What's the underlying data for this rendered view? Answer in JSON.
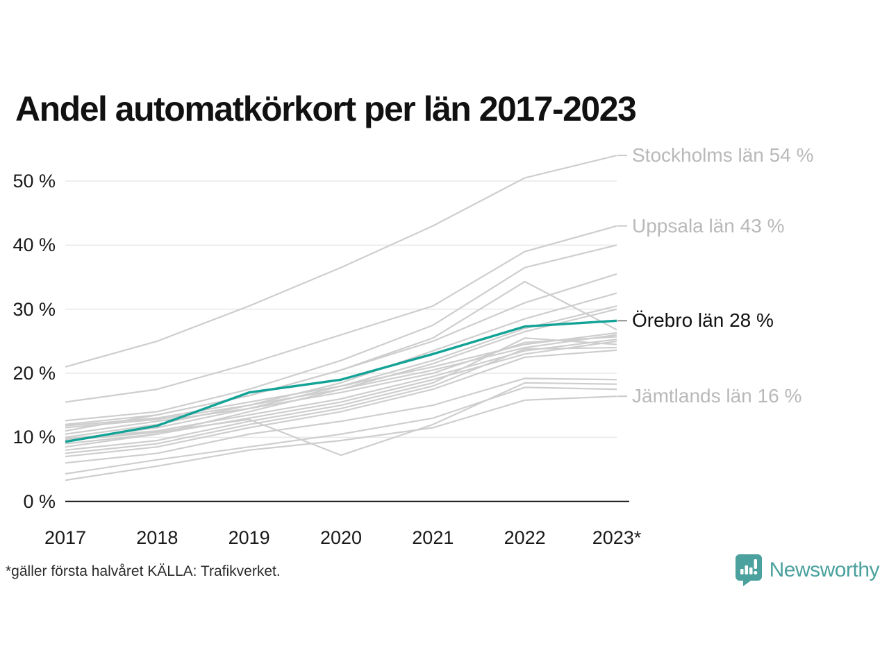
{
  "title": "Andel automatkörkort per län 2017-2023",
  "footer_note": "*gäller första halvåret KÄLLA: Trafikverket.",
  "brand": {
    "name": "Newsworthy"
  },
  "colors": {
    "highlight_line": "#12a296",
    "gray_line": "#cecece",
    "grid": "#e9e9e9",
    "axis": "#111111",
    "label_gray": "#b9b9b9",
    "label_dark": "#111111",
    "brand_teal": "#4ba19e"
  },
  "chart_data": {
    "type": "line",
    "title": "Andel automatkörkort per län 2017-2023",
    "xlabel": "",
    "ylabel": "",
    "ylim": [
      0,
      55
    ],
    "grid": "horizontal",
    "legend_position": "right-annotations",
    "categories": [
      "2017",
      "2018",
      "2019",
      "2020",
      "2021",
      "2022",
      "2023*"
    ],
    "yticks": [
      {
        "value": 0,
        "label": "0 %"
      },
      {
        "value": 10,
        "label": "10 %"
      },
      {
        "value": 20,
        "label": "20 %"
      },
      {
        "value": 30,
        "label": "30 %"
      },
      {
        "value": 40,
        "label": "40 %"
      },
      {
        "value": 50,
        "label": "50 %"
      }
    ],
    "series": [
      {
        "name": "Stockholms län",
        "highlight": false,
        "values": [
          21,
          25,
          30.5,
          36.5,
          43,
          50.5,
          54
        ]
      },
      {
        "name": "Uppsala län",
        "highlight": false,
        "values": [
          15.5,
          17.5,
          21.5,
          26,
          30.5,
          39,
          43
        ]
      },
      {
        "name": "unlabeled-01",
        "highlight": false,
        "values": [
          12.6,
          14,
          17.5,
          22,
          27.5,
          36.5,
          40
        ]
      },
      {
        "name": "unlabeled-02",
        "highlight": false,
        "values": [
          11,
          13.5,
          16.5,
          20.5,
          25,
          31,
          35.5
        ]
      },
      {
        "name": "unlabeled-03",
        "highlight": false,
        "values": [
          10,
          12,
          15,
          18.5,
          23.5,
          28.5,
          32.5
        ]
      },
      {
        "name": "unlabeled-04",
        "highlight": false,
        "values": [
          9.6,
          11.5,
          14.5,
          18,
          22,
          27,
          30.5
        ]
      },
      {
        "name": "unlabeled-05",
        "highlight": false,
        "values": [
          8.5,
          10.5,
          14,
          17.5,
          21.5,
          26.5,
          30
        ]
      },
      {
        "name": "unlabeled-06",
        "highlight": false,
        "values": [
          12,
          13.5,
          16.5,
          20.5,
          25.5,
          34.3,
          26.8
        ]
      },
      {
        "name": "unlabeled-07",
        "highlight": false,
        "values": [
          11.8,
          13,
          15.5,
          18,
          21,
          24.5,
          26.3
        ]
      },
      {
        "name": "unlabeled-08",
        "highlight": false,
        "values": [
          11.5,
          12.8,
          15,
          17.5,
          20.5,
          24,
          26
        ]
      },
      {
        "name": "unlabeled-09",
        "highlight": false,
        "values": [
          10.5,
          12.5,
          14.5,
          17,
          20,
          24.8,
          25.7
        ]
      },
      {
        "name": "unlabeled-10",
        "highlight": false,
        "values": [
          9.8,
          11,
          13.5,
          16,
          19.5,
          23.5,
          25.3
        ]
      },
      {
        "name": "unlabeled-11",
        "highlight": false,
        "values": [
          9,
          10.5,
          13,
          15.5,
          19,
          23,
          25
        ]
      },
      {
        "name": "unlabeled-12",
        "highlight": false,
        "values": [
          8,
          9.5,
          12.5,
          15,
          18.5,
          25.5,
          24.5
        ]
      },
      {
        "name": "unlabeled-13",
        "highlight": false,
        "values": [
          7.5,
          9,
          12,
          14.5,
          18,
          23.8,
          24
        ]
      },
      {
        "name": "unlabeled-14",
        "highlight": false,
        "values": [
          7,
          8.5,
          11.5,
          14,
          17.5,
          22.5,
          23.6
        ]
      },
      {
        "name": "unlabeled-15",
        "highlight": false,
        "values": [
          6,
          7.5,
          10.5,
          12.5,
          15,
          19.2,
          19
        ]
      },
      {
        "name": "unlabeled-16",
        "highlight": false,
        "values": [
          9.5,
          10.8,
          12.8,
          7.2,
          12,
          18.5,
          18.3
        ]
      },
      {
        "name": "unlabeled-17",
        "highlight": false,
        "values": [
          4.3,
          6.5,
          8.5,
          10.5,
          13,
          17.8,
          17.5
        ]
      },
      {
        "name": "Jämtlands län",
        "highlight": false,
        "values": [
          3.3,
          5.5,
          8,
          9.5,
          11.5,
          15.8,
          16.4
        ]
      },
      {
        "name": "Örebro län",
        "highlight": true,
        "values": [
          9.3,
          11.8,
          17,
          19,
          23,
          27.3,
          28.2
        ]
      }
    ],
    "annotations": [
      {
        "label": "Stockholms län 54 %",
        "value": 54,
        "emphasized": false
      },
      {
        "label": "Uppsala län 43 %",
        "value": 43,
        "emphasized": false
      },
      {
        "label": "Örebro län 28 %",
        "value": 28.2,
        "emphasized": true
      },
      {
        "label": "Jämtlands län 16 %",
        "value": 16.4,
        "emphasized": false
      }
    ]
  }
}
